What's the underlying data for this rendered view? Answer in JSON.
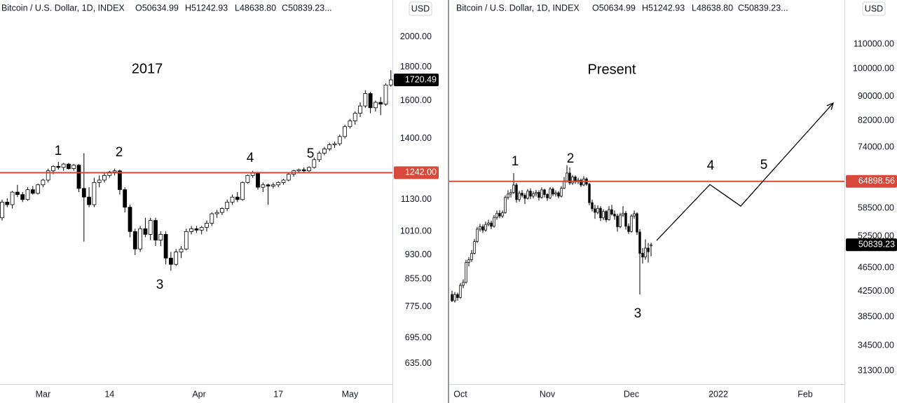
{
  "chart_data": [
    {
      "type": "candlestick",
      "title": "2017",
      "header": {
        "symbol": "Bitcoin / U.S. Dollar, 1D, INDEX",
        "ohlc": [
          "O50634.99",
          "H51242.93",
          "L48638.80",
          "C50839.23..."
        ]
      },
      "currency": "USD",
      "log_scale": true,
      "up_color": "#ffffff",
      "down_color": "#000000",
      "ylim": [
        591,
        2278
      ],
      "yticks": [
        {
          "value": 2000,
          "label": "2000.00"
        },
        {
          "value": 1800,
          "label": "1800.00"
        },
        {
          "value": 1600,
          "label": "1600.00"
        },
        {
          "value": 1400,
          "label": "1400.00"
        },
        {
          "value": 1130,
          "label": "1130.00"
        },
        {
          "value": 1010,
          "label": "1010.00"
        },
        {
          "value": 930,
          "label": "930.00"
        },
        {
          "value": 855,
          "label": "855.00"
        },
        {
          "value": 775,
          "label": "775.00"
        },
        {
          "value": 695,
          "label": "695.00"
        },
        {
          "value": 635,
          "label": "635.00"
        }
      ],
      "xticks": [
        {
          "value": 8,
          "label": "Mar"
        },
        {
          "value": 21,
          "label": "14"
        },
        {
          "value": 38.5,
          "label": "Apr"
        },
        {
          "value": 54,
          "label": "17"
        },
        {
          "value": 68,
          "label": "May"
        }
      ],
      "hline": {
        "value": 1242,
        "label": "1242.00",
        "color": "#d9493b"
      },
      "last_price": {
        "value": 1720.49,
        "label": "1720.49"
      },
      "annotations": [
        "1",
        "2",
        "3",
        "4",
        "5"
      ],
      "candles": [
        [
          1060,
          1130,
          1050,
          1120
        ],
        [
          1120,
          1135,
          1100,
          1110
        ],
        [
          1110,
          1165,
          1095,
          1160
        ],
        [
          1160,
          1190,
          1140,
          1150
        ],
        [
          1150,
          1160,
          1120,
          1130
        ],
        [
          1130,
          1180,
          1125,
          1170
        ],
        [
          1170,
          1185,
          1150,
          1155
        ],
        [
          1155,
          1195,
          1150,
          1190
        ],
        [
          1190,
          1215,
          1180,
          1210
        ],
        [
          1210,
          1260,
          1200,
          1250
        ],
        [
          1250,
          1275,
          1235,
          1270
        ],
        [
          1270,
          1290,
          1255,
          1265
        ],
        [
          1265,
          1285,
          1250,
          1280
        ],
        [
          1280,
          1285,
          1255,
          1260
        ],
        [
          1260,
          1280,
          1250,
          1275
        ],
        [
          1275,
          1280,
          1160,
          1175
        ],
        [
          1175,
          1330,
          975,
          1140
        ],
        [
          1140,
          1180,
          1100,
          1110
        ],
        [
          1110,
          1220,
          1100,
          1200
        ],
        [
          1200,
          1230,
          1180,
          1210
        ],
        [
          1210,
          1240,
          1200,
          1230
        ],
        [
          1230,
          1250,
          1220,
          1245
        ],
        [
          1245,
          1260,
          1230,
          1250
        ],
        [
          1250,
          1255,
          1150,
          1170
        ],
        [
          1170,
          1180,
          1080,
          1100
        ],
        [
          1100,
          1110,
          990,
          1010
        ],
        [
          1010,
          1020,
          930,
          950
        ],
        [
          950,
          1030,
          940,
          1020
        ],
        [
          1020,
          1060,
          990,
          1000
        ],
        [
          1000,
          1060,
          980,
          1050
        ],
        [
          1050,
          1060,
          960,
          980
        ],
        [
          980,
          1010,
          960,
          1000
        ],
        [
          1000,
          1010,
          900,
          920
        ],
        [
          920,
          940,
          880,
          900
        ],
        [
          900,
          950,
          895,
          940
        ],
        [
          940,
          960,
          920,
          950
        ],
        [
          950,
          1020,
          945,
          1010
        ],
        [
          1010,
          1030,
          1000,
          1020
        ],
        [
          1020,
          1030,
          1005,
          1015
        ],
        [
          1015,
          1030,
          1000,
          1025
        ],
        [
          1025,
          1050,
          1010,
          1040
        ],
        [
          1040,
          1080,
          1030,
          1075
        ],
        [
          1075,
          1090,
          1060,
          1080
        ],
        [
          1080,
          1100,
          1070,
          1095
        ],
        [
          1095,
          1130,
          1085,
          1120
        ],
        [
          1120,
          1150,
          1110,
          1140
        ],
        [
          1140,
          1160,
          1120,
          1130
        ],
        [
          1130,
          1205,
          1125,
          1200
        ],
        [
          1200,
          1235,
          1195,
          1230
        ],
        [
          1230,
          1250,
          1220,
          1240
        ],
        [
          1240,
          1245,
          1170,
          1180
        ],
        [
          1180,
          1200,
          1160,
          1190
        ],
        [
          1190,
          1195,
          1110,
          1185
        ],
        [
          1185,
          1200,
          1175,
          1190
        ],
        [
          1190,
          1205,
          1180,
          1200
        ],
        [
          1200,
          1215,
          1190,
          1210
        ],
        [
          1210,
          1240,
          1205,
          1235
        ],
        [
          1235,
          1255,
          1225,
          1250
        ],
        [
          1250,
          1260,
          1240,
          1255
        ],
        [
          1255,
          1265,
          1245,
          1250
        ],
        [
          1250,
          1270,
          1245,
          1265
        ],
        [
          1265,
          1310,
          1260,
          1300
        ],
        [
          1300,
          1340,
          1290,
          1330
        ],
        [
          1330,
          1360,
          1320,
          1350
        ],
        [
          1350,
          1380,
          1340,
          1370
        ],
        [
          1370,
          1385,
          1355,
          1375
        ],
        [
          1375,
          1420,
          1365,
          1410
        ],
        [
          1410,
          1470,
          1400,
          1460
        ],
        [
          1460,
          1500,
          1450,
          1490
        ],
        [
          1490,
          1540,
          1470,
          1530
        ],
        [
          1530,
          1590,
          1510,
          1570
        ],
        [
          1570,
          1660,
          1560,
          1640
        ],
        [
          1640,
          1650,
          1530,
          1560
        ],
        [
          1560,
          1600,
          1540,
          1590
        ],
        [
          1590,
          1620,
          1520,
          1580
        ],
        [
          1580,
          1700,
          1570,
          1690
        ],
        [
          1690,
          1780,
          1680,
          1720.49
        ]
      ]
    },
    {
      "type": "candlestick",
      "title": "Present",
      "header": {
        "symbol": "Bitcoin / U.S. Dollar, 1D, INDEX",
        "ohlc": [
          "O50634.99",
          "H51242.93",
          "L48638.80",
          "C50839.23..."
        ]
      },
      "currency": "USD",
      "log_scale": true,
      "up_color": "#ffffff",
      "down_color": "#000000",
      "ylim": [
        29750,
        130400
      ],
      "yticks": [
        {
          "value": 110000,
          "label": "110000.00"
        },
        {
          "value": 100000,
          "label": "100000.00"
        },
        {
          "value": 90000,
          "label": "90000.00"
        },
        {
          "value": 82000,
          "label": "82000.00"
        },
        {
          "value": 74000,
          "label": "74000.00"
        },
        {
          "value": 58500,
          "label": "58500.00"
        },
        {
          "value": 52500,
          "label": "52500.00"
        },
        {
          "value": 46500,
          "label": "46500.00"
        },
        {
          "value": 42500,
          "label": "42500.00"
        },
        {
          "value": 38500,
          "label": "38500.00"
        },
        {
          "value": 34500,
          "label": "34500.00"
        },
        {
          "value": 31300,
          "label": "31300.00"
        }
      ],
      "xticks": [
        {
          "value": 3,
          "label": "Oct"
        },
        {
          "value": 34,
          "label": "Nov"
        },
        {
          "value": 64,
          "label": "Dec"
        },
        {
          "value": 95,
          "label": "2022"
        },
        {
          "value": 126,
          "label": "Feb"
        }
      ],
      "hline": {
        "value": 64898.56,
        "label": "64898.56",
        "color": "#d9493b"
      },
      "last_price": {
        "value": 50839.23,
        "label": "50839.23"
      },
      "annotations": [
        "1",
        "2",
        "3",
        "4",
        "5"
      ],
      "projection": {
        "x": [
          73,
          92,
          103,
          111,
          136
        ],
        "values": [
          51700,
          64100,
          59000,
          65000,
          87700
        ]
      },
      "candles": [
        [
          42000,
          42600,
          40800,
          41000
        ],
        [
          41000,
          42400,
          40700,
          42000
        ],
        [
          42000,
          42300,
          41000,
          41500
        ],
        [
          41500,
          43900,
          41300,
          43500
        ],
        [
          43500,
          44500,
          43000,
          44000
        ],
        [
          44000,
          48000,
          43800,
          47500
        ],
        [
          47500,
          48500,
          46800,
          48000
        ],
        [
          48000,
          49800,
          47600,
          49200
        ],
        [
          49200,
          52000,
          49000,
          51500
        ],
        [
          51500,
          54500,
          51200,
          54000
        ],
        [
          54000,
          55100,
          53500,
          54500
        ],
        [
          54500,
          55000,
          53200,
          53800
        ],
        [
          53800,
          55600,
          53500,
          55000
        ],
        [
          55000,
          56000,
          54600,
          55300
        ],
        [
          55300,
          55800,
          54000,
          54600
        ],
        [
          54600,
          57000,
          54300,
          56500
        ],
        [
          56500,
          58000,
          56000,
          57400
        ],
        [
          57400,
          58100,
          56300,
          56800
        ],
        [
          56800,
          58000,
          56400,
          57500
        ],
        [
          57500,
          61500,
          57300,
          61000
        ],
        [
          61000,
          62700,
          60500,
          61800
        ],
        [
          61800,
          63000,
          61000,
          62200
        ],
        [
          62200,
          67000,
          61800,
          64000
        ],
        [
          64000,
          64500,
          59800,
          60500
        ],
        [
          60500,
          62600,
          60000,
          62000
        ],
        [
          62000,
          62800,
          61000,
          61500
        ],
        [
          61500,
          62000,
          59500,
          60800
        ],
        [
          60800,
          63000,
          60500,
          62500
        ],
        [
          62500,
          63200,
          60600,
          61300
        ],
        [
          61300,
          62500,
          60800,
          61900
        ],
        [
          61900,
          62800,
          61200,
          62200
        ],
        [
          62200,
          62700,
          60300,
          61000
        ],
        [
          61000,
          63400,
          60700,
          62800
        ],
        [
          62800,
          63100,
          61000,
          61700
        ],
        [
          61700,
          62000,
          60200,
          60900
        ],
        [
          60900,
          63500,
          60600,
          63000
        ],
        [
          63000,
          63400,
          61300,
          61800
        ],
        [
          61800,
          62700,
          61200,
          62100
        ],
        [
          62100,
          62500,
          60800,
          61300
        ],
        [
          61300,
          63700,
          61000,
          63200
        ],
        [
          63200,
          66000,
          63000,
          65000
        ],
        [
          65000,
          69000,
          64600,
          67000
        ],
        [
          67000,
          68500,
          64000,
          64500
        ],
        [
          64500,
          66500,
          64000,
          66000
        ],
        [
          66000,
          66400,
          64300,
          64800
        ],
        [
          64800,
          65800,
          64200,
          65200
        ],
        [
          65200,
          65600,
          63500,
          64000
        ],
        [
          64000,
          66200,
          63700,
          65500
        ],
        [
          65500,
          65900,
          63800,
          64200
        ],
        [
          64200,
          64500,
          59200,
          59800
        ],
        [
          59800,
          60500,
          57800,
          58400
        ],
        [
          58400,
          59300,
          56200,
          57600
        ],
        [
          57600,
          59200,
          57200,
          58500
        ],
        [
          58500,
          59000,
          55700,
          56400
        ],
        [
          56400,
          58300,
          55900,
          57800
        ],
        [
          57800,
          58100,
          55500,
          56000
        ],
        [
          56000,
          59000,
          55800,
          58200
        ],
        [
          58200,
          59300,
          56900,
          57200
        ],
        [
          57200,
          58000,
          56000,
          56800
        ],
        [
          56800,
          57300,
          53500,
          54500
        ],
        [
          54500,
          57500,
          54200,
          57000
        ],
        [
          57000,
          59000,
          56600,
          57400
        ],
        [
          57400,
          57900,
          53900,
          54600
        ],
        [
          54600,
          55200,
          53000,
          53500
        ],
        [
          53500,
          57200,
          53300,
          56800
        ],
        [
          56800,
          58000,
          56200,
          57300
        ],
        [
          57300,
          57600,
          52800,
          53400
        ],
        [
          53400,
          54000,
          42000,
          49200
        ],
        [
          49200,
          50200,
          47300,
          48500
        ],
        [
          48500,
          51900,
          48000,
          50200
        ],
        [
          50200,
          51200,
          47500,
          49500
        ],
        [
          50634.99,
          51242.93,
          48638.8,
          50839.23
        ]
      ]
    }
  ]
}
